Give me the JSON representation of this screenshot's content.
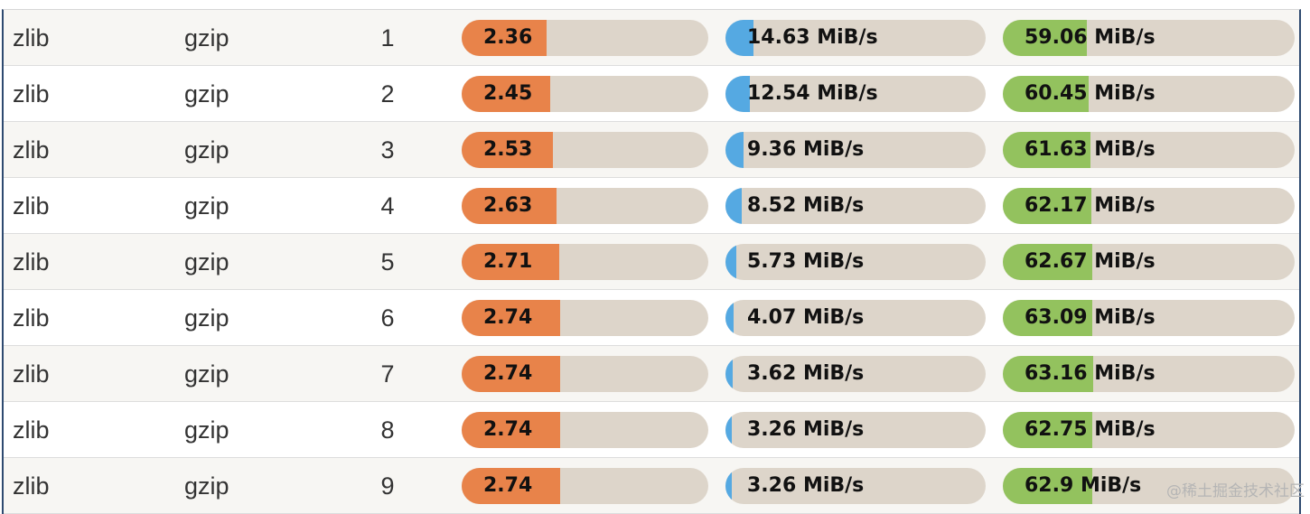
{
  "colors": {
    "ratio_fill": "#e8834a",
    "compress_fill": "#55a9e2",
    "decompress_fill": "#93c25e",
    "bar_track": "#ddd5ca"
  },
  "rows": [
    {
      "lib": "zlib",
      "format": "gzip",
      "level": "1",
      "ratio": "2.36",
      "ratio_value": 2.36,
      "compress": "14.63 MiB/s",
      "compress_value": 14.63,
      "decompress": "59.06 MiB/s",
      "decompress_value": 59.06
    },
    {
      "lib": "zlib",
      "format": "gzip",
      "level": "2",
      "ratio": "2.45",
      "ratio_value": 2.45,
      "compress": "12.54 MiB/s",
      "compress_value": 12.54,
      "decompress": "60.45 MiB/s",
      "decompress_value": 60.45
    },
    {
      "lib": "zlib",
      "format": "gzip",
      "level": "3",
      "ratio": "2.53",
      "ratio_value": 2.53,
      "compress": "9.36 MiB/s",
      "compress_value": 9.36,
      "decompress": "61.63 MiB/s",
      "decompress_value": 61.63
    },
    {
      "lib": "zlib",
      "format": "gzip",
      "level": "4",
      "ratio": "2.63",
      "ratio_value": 2.63,
      "compress": "8.52 MiB/s",
      "compress_value": 8.52,
      "decompress": "62.17 MiB/s",
      "decompress_value": 62.17
    },
    {
      "lib": "zlib",
      "format": "gzip",
      "level": "5",
      "ratio": "2.71",
      "ratio_value": 2.71,
      "compress": "5.73 MiB/s",
      "compress_value": 5.73,
      "decompress": "62.67 MiB/s",
      "decompress_value": 62.67
    },
    {
      "lib": "zlib",
      "format": "gzip",
      "level": "6",
      "ratio": "2.74",
      "ratio_value": 2.74,
      "compress": "4.07 MiB/s",
      "compress_value": 4.07,
      "decompress": "63.09 MiB/s",
      "decompress_value": 63.09
    },
    {
      "lib": "zlib",
      "format": "gzip",
      "level": "7",
      "ratio": "2.74",
      "ratio_value": 2.74,
      "compress": "3.62 MiB/s",
      "compress_value": 3.62,
      "decompress": "63.16 MiB/s",
      "decompress_value": 63.16
    },
    {
      "lib": "zlib",
      "format": "gzip",
      "level": "8",
      "ratio": "2.74",
      "ratio_value": 2.74,
      "compress": "3.26 MiB/s",
      "compress_value": 3.26,
      "decompress": "62.75 MiB/s",
      "decompress_value": 62.75
    },
    {
      "lib": "zlib",
      "format": "gzip",
      "level": "9",
      "ratio": "2.74",
      "ratio_value": 2.74,
      "compress": "3.26 MiB/s",
      "compress_value": 3.26,
      "decompress": "62.9 MiB/s",
      "decompress_value": 62.9
    }
  ],
  "scale": {
    "ratio_max": 6.84,
    "compress_max": 135,
    "decompress_max": 205
  },
  "watermark": "@稀土掘金技术社区"
}
